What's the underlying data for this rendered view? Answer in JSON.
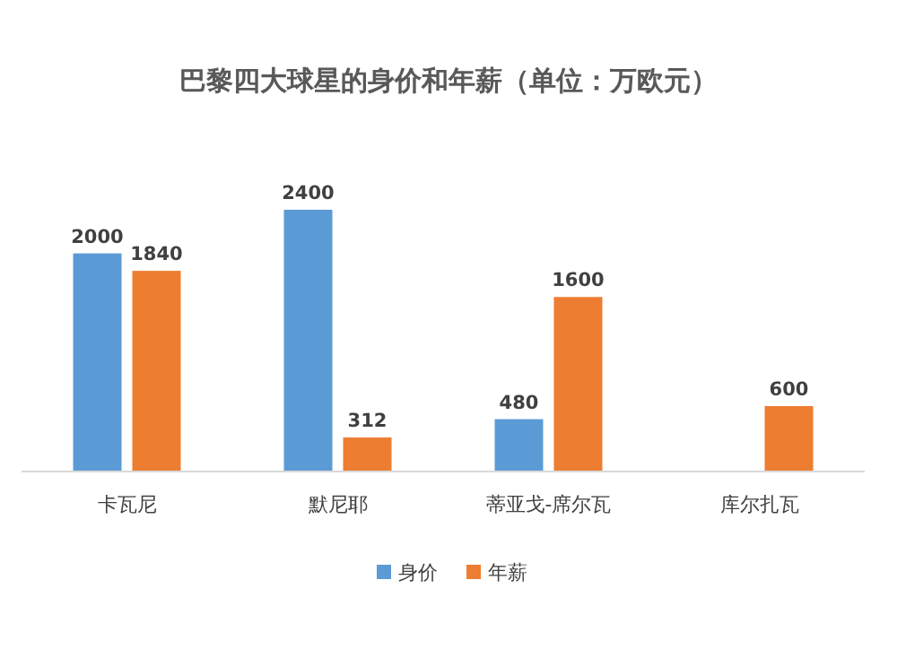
{
  "chart_data": {
    "type": "bar",
    "title": "巴黎四大球星的身价和年薪（单位：万欧元）",
    "categories": [
      "卡瓦尼",
      "默尼耶",
      "蒂亚戈-席尔瓦",
      "库尔扎瓦"
    ],
    "series": [
      {
        "name": "身价",
        "color": "#5b9bd5",
        "values": [
          2000,
          2400,
          480,
          null
        ]
      },
      {
        "name": "年薪",
        "color": "#ed7d31",
        "values": [
          1840,
          312,
          1600,
          600
        ]
      }
    ],
    "data_labels": true,
    "legend": "bottom"
  }
}
